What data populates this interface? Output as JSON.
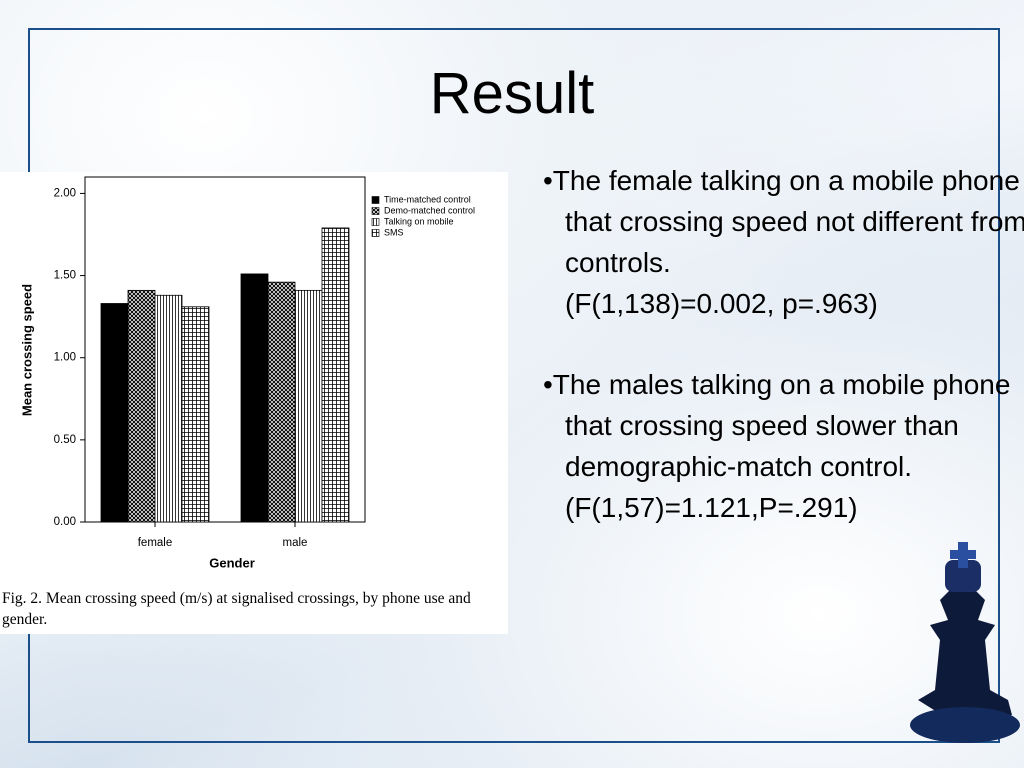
{
  "title": "Result",
  "chart_data": {
    "type": "bar",
    "y_label": "Mean crossing speed",
    "x_label": "Gender",
    "caption": "Fig. 2. Mean crossing speed (m/s) at signalised crossings, by phone use and gender.",
    "categories": [
      "female",
      "male"
    ],
    "series": [
      {
        "name": "Time-matched control",
        "color": "#000000",
        "pattern": "solid",
        "values": [
          1.33,
          1.51
        ]
      },
      {
        "name": "Demo-matched control",
        "color": "#000000",
        "pattern": "crosshatch",
        "values": [
          1.41,
          1.46
        ]
      },
      {
        "name": "Talking on mobile",
        "color": "#000000",
        "pattern": "vertical",
        "values": [
          1.38,
          1.41
        ]
      },
      {
        "name": "SMS",
        "color": "#000000",
        "pattern": "grid",
        "values": [
          1.31,
          1.79
        ]
      }
    ],
    "ylim": [
      0,
      2.1
    ],
    "yticks": [
      {
        "value": 0,
        "label": "0.00"
      },
      {
        "value": 0.5,
        "label": "0.50"
      },
      {
        "value": 1,
        "label": "1.00"
      },
      {
        "value": 1.5,
        "label": "1.50"
      },
      {
        "value": 2,
        "label": "2.00"
      }
    ]
  },
  "bullets": [
    {
      "text": "•The female talking on a mobile phone that crossing speed not different from controls.",
      "stat": "(F(1,138)=0.002, p=.963)"
    },
    {
      "text": "•The males talking on a mobile phone that crossing speed slower than demographic-match control.",
      "stat": "(F(1,57)=1.121,P=.291)"
    }
  ]
}
